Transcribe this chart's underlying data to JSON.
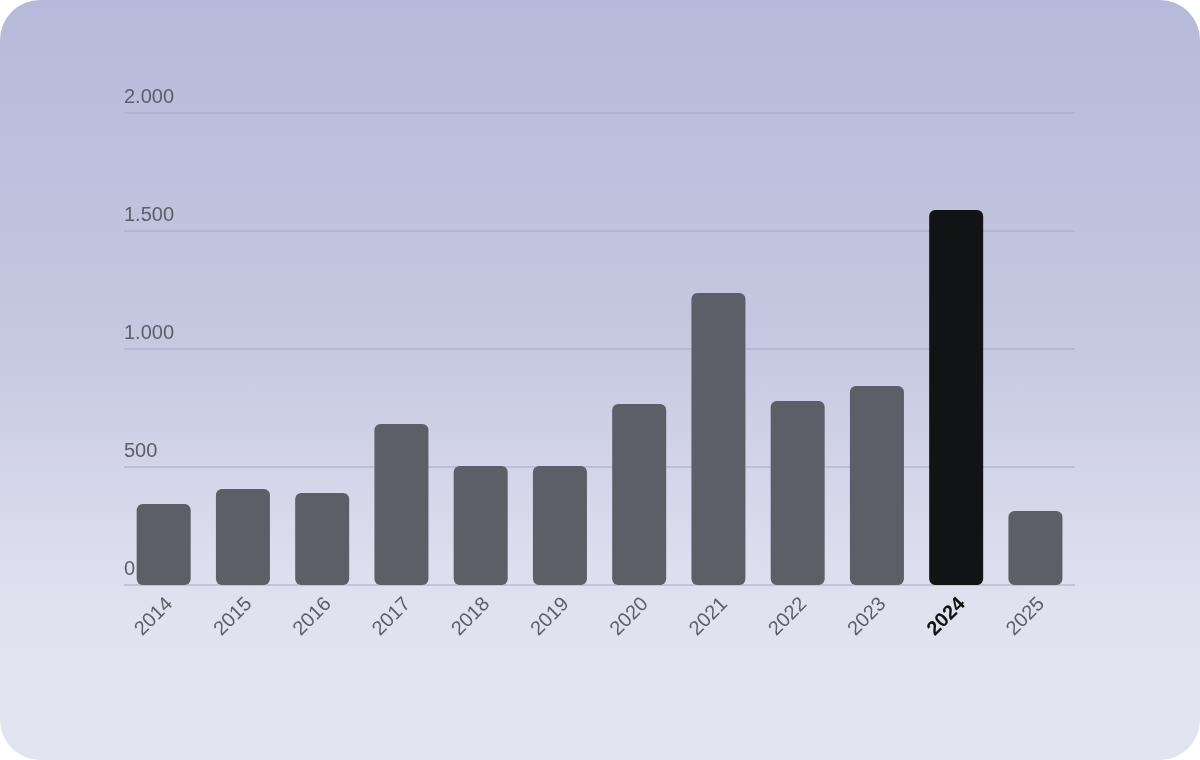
{
  "chart_data": {
    "type": "bar",
    "categories": [
      "2014",
      "2015",
      "2016",
      "2017",
      "2018",
      "2019",
      "2020",
      "2021",
      "2022",
      "2023",
      "2024",
      "2025"
    ],
    "values": [
      343,
      407,
      390,
      682,
      504,
      504,
      767,
      1237,
      780,
      843,
      1589,
      314
    ],
    "colors": [
      "#5c5f68",
      "#5c5f68",
      "#5c5f68",
      "#5c5f68",
      "#5c5f68",
      "#5c5f68",
      "#5c5f68",
      "#5c5f68",
      "#5c5f68",
      "#5c5f68",
      "#111315",
      "#5c5f68"
    ],
    "ylim": [
      0,
      2000
    ],
    "yticks": [
      {
        "value": 0,
        "label": "0"
      },
      {
        "value": 500,
        "label": "500"
      },
      {
        "value": 1000,
        "label": "1.000"
      },
      {
        "value": 1500,
        "label": "1.500"
      },
      {
        "value": 2000,
        "label": "2.000"
      }
    ],
    "grid": "y",
    "legend": false
  }
}
